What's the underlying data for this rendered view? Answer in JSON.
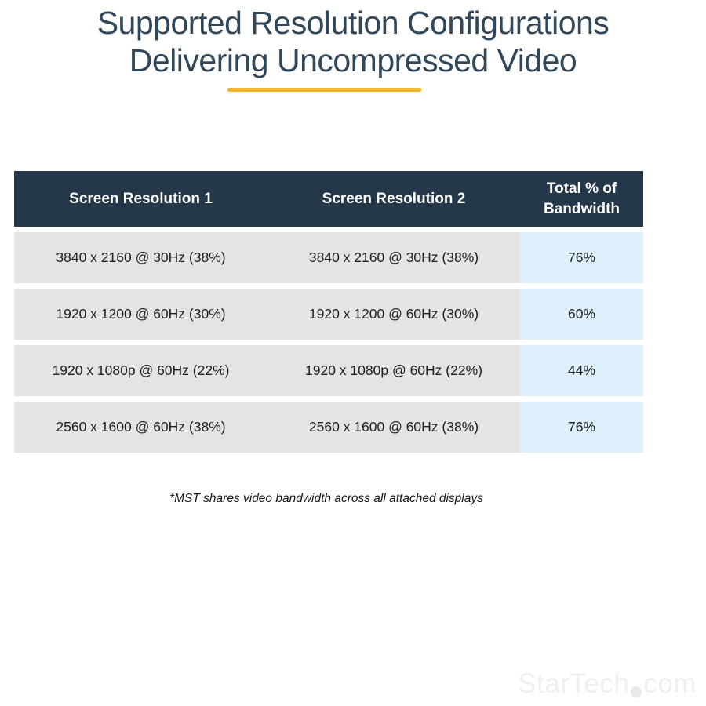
{
  "title": {
    "line1": "Supported Resolution Configurations",
    "line2": "Delivering Uncompressed Video"
  },
  "table": {
    "headers": [
      "Screen Resolution 1",
      "Screen Resolution 2",
      "Total % of Bandwidth"
    ],
    "rows": [
      [
        "3840 x 2160 @ 30Hz (38%)",
        "3840 x 2160 @ 30Hz (38%)",
        "76%"
      ],
      [
        "1920 x 1200 @ 60Hz (30%)",
        "1920 x 1200 @ 60Hz (30%)",
        "60%"
      ],
      [
        "1920 x 1080p @ 60Hz (22%)",
        "1920 x 1080p @ 60Hz (22%)",
        "44%"
      ],
      [
        "2560 x 1600 @ 60Hz (38%)",
        "2560 x 1600 @ 60Hz (38%)",
        "76%"
      ]
    ]
  },
  "footnote": "*MST shares video bandwidth across all attached displays",
  "watermark": {
    "brand": "StarTech",
    "tld": "com"
  },
  "colors": {
    "title_text": "#31475a",
    "accent_yellow": "#f0b42f",
    "header_bg": "#24384a",
    "header_text": "#ffffff",
    "row_gray": "#e5e4e2",
    "row_blue": "#def0fb",
    "body_text": "#1e1e1e",
    "watermark_gray": "#edf0ef",
    "watermark_dot": "#e7eae9"
  },
  "chart_data": {
    "type": "table",
    "title": "Supported Resolution Configurations Delivering Uncompressed Video",
    "columns": [
      "Screen Resolution 1",
      "Screen Resolution 2",
      "Total % of Bandwidth"
    ],
    "rows": [
      [
        "3840 x 2160 @ 30Hz (38%)",
        "3840 x 2160 @ 30Hz (38%)",
        "76%"
      ],
      [
        "1920 x 1200 @ 60Hz (30%)",
        "1920 x 1200 @ 60Hz (30%)",
        "60%"
      ],
      [
        "1920 x 1080p @ 60Hz (22%)",
        "1920 x 1080p @ 60Hz (22%)",
        "44%"
      ],
      [
        "2560 x 1600 @ 60Hz (38%)",
        "2560 x 1600 @ 60Hz (38%)",
        "76%"
      ]
    ],
    "footnote": "*MST shares video bandwidth across all attached displays"
  }
}
